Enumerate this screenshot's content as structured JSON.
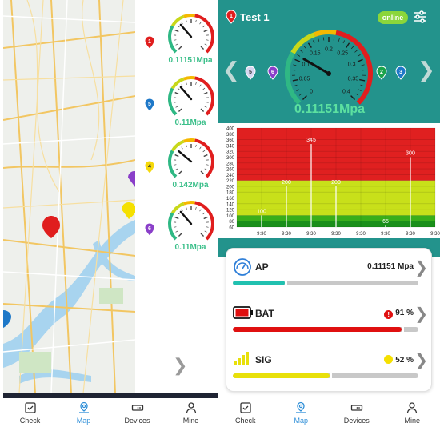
{
  "left": {
    "gauges": [
      {
        "pin": "1",
        "pin_color": "#e01e1e",
        "value": "0.11151Mpa",
        "fill": 0.55
      },
      {
        "pin": "5",
        "pin_color": "#1e78c8",
        "value": "0.11Mpa",
        "fill": 0.55
      },
      {
        "pin": "4",
        "pin_color": "#f5d90a",
        "value": "0.142Mpa",
        "fill": 0.4
      },
      {
        "pin": "6",
        "pin_color": "#8a3fc9",
        "value": "0.11Mpa",
        "fill": 0.55
      }
    ],
    "nav": [
      {
        "label": "Check",
        "icon": "check-icon",
        "active": false
      },
      {
        "label": "Map",
        "icon": "map-icon",
        "active": true
      },
      {
        "label": "Devices",
        "icon": "devices-icon",
        "active": false
      },
      {
        "label": "Mine",
        "icon": "user-icon",
        "active": false
      }
    ]
  },
  "right": {
    "title_pin": "1",
    "title": "Test 1",
    "status": "online",
    "device_pins": [
      {
        "label": "5",
        "color": "#d6d6f0",
        "text_color": "#333"
      },
      {
        "label": "6",
        "color": "#8a3fc9",
        "text_color": "#fff"
      },
      {
        "label": "2",
        "color": "#1aa34a",
        "text_color": "#fff"
      },
      {
        "label": "3",
        "color": "#1e78c8",
        "text_color": "#fff"
      }
    ],
    "gauge": {
      "ticks": [
        "0",
        "0.05",
        "0.1",
        "0.15",
        "0.2",
        "0.25",
        "0.3",
        "0.35",
        "0.4"
      ],
      "value": "0.11151Mpa"
    },
    "chart_data": {
      "type": "bar",
      "y_ticks": [
        "400",
        "380",
        "360",
        "340",
        "320",
        "300",
        "280",
        "260",
        "240",
        "220",
        "200",
        "180",
        "160",
        "140",
        "120",
        "100",
        "80",
        "60"
      ],
      "ylim": [
        60,
        400
      ],
      "x_labels": [
        "9:30",
        "9:30",
        "9:30",
        "9:30",
        "9:30",
        "9:30",
        "9:30",
        "9:30"
      ],
      "values": [
        100,
        200,
        345,
        200,
        65,
        300
      ],
      "positions": [
        1,
        2,
        3,
        4,
        6,
        7
      ],
      "bands": [
        {
          "from": 60,
          "to": 80,
          "color": "#1a8f1a"
        },
        {
          "from": 80,
          "to": 100,
          "color": "#3aae1a"
        },
        {
          "from": 100,
          "to": 220,
          "color": "#c8e01a"
        },
        {
          "from": 220,
          "to": 400,
          "color": "#e02020"
        }
      ]
    },
    "rows": [
      {
        "label": "AP",
        "value": "0.11151 Mpa",
        "fill": 0.28,
        "fill_color": "#21c1b0",
        "icon": "gauge-icon",
        "badge": ""
      },
      {
        "label": "BAT",
        "value": "91 %",
        "fill": 0.91,
        "fill_color": "#e01010",
        "icon": "battery-icon",
        "badge": "!",
        "badge_color": "#e01010"
      },
      {
        "label": "SIG",
        "value": "52 %",
        "fill": 0.52,
        "fill_color": "#e8e00a",
        "icon": "signal-icon",
        "badge": "",
        "badge_color": "#f5e000"
      }
    ],
    "nav": [
      {
        "label": "Check",
        "icon": "check-icon",
        "active": false
      },
      {
        "label": "Map",
        "icon": "map-icon",
        "active": true
      },
      {
        "label": "Devices",
        "icon": "devices-icon",
        "active": false
      },
      {
        "label": "Mine",
        "icon": "user-icon",
        "active": false
      }
    ]
  }
}
